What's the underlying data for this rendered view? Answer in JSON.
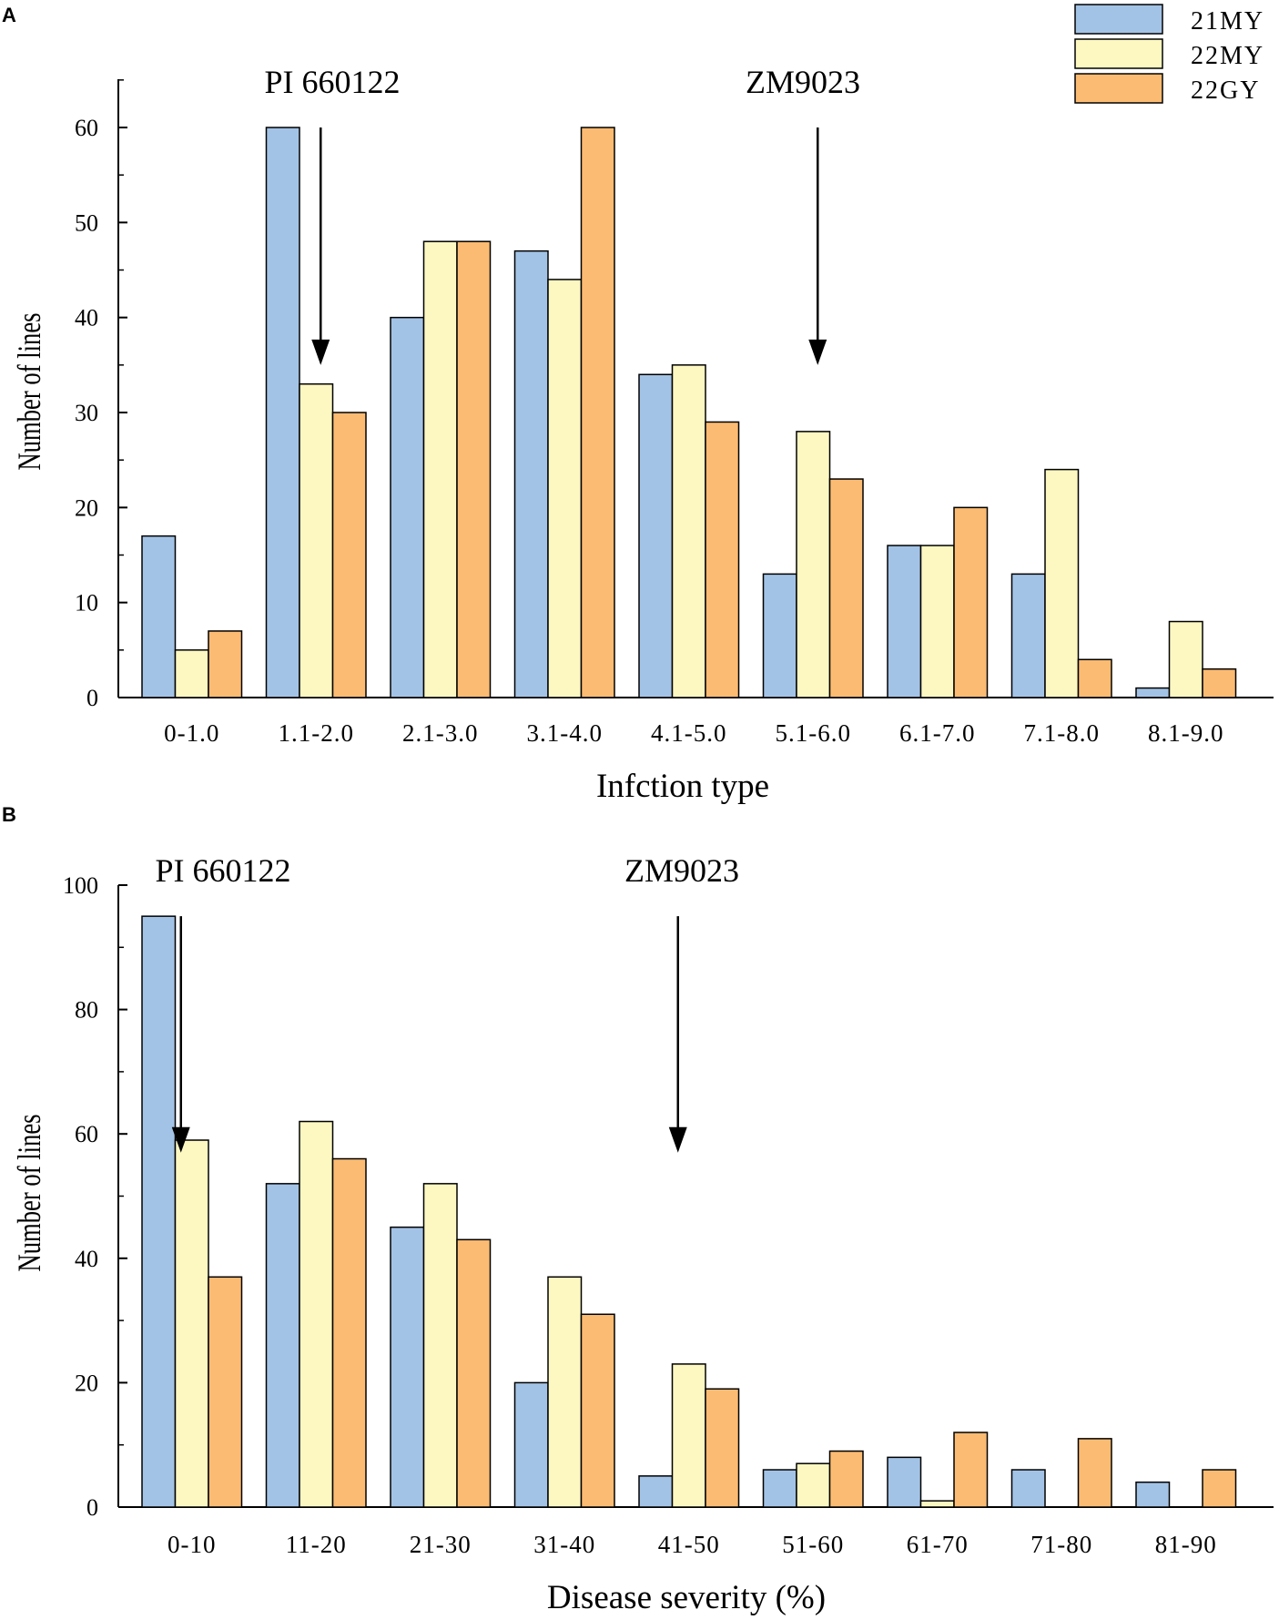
{
  "colors": {
    "21MY": "#a3c3e6",
    "22MY": "#fdf8c2",
    "22GY": "#fbbb72",
    "edge": "#000000"
  },
  "legend": {
    "items": [
      "21MY",
      "22MY",
      "22GY"
    ]
  },
  "chart_data": [
    {
      "panel": "A",
      "type": "bar",
      "title": "",
      "xlabel": "Infction type",
      "ylabel": "Number of lines",
      "ylim": [
        0,
        65
      ],
      "yticks": [
        0,
        10,
        20,
        30,
        40,
        50,
        60
      ],
      "categories": [
        "0-1.0",
        "1.1-2.0",
        "2.1-3.0",
        "3.1-4.0",
        "4.1-5.0",
        "5.1-6.0",
        "6.1-7.0",
        "7.1-8.0",
        "8.1-9.0"
      ],
      "series": [
        {
          "name": "21MY",
          "values": [
            17,
            60,
            40,
            47,
            34,
            13,
            16,
            13,
            1
          ]
        },
        {
          "name": "22MY",
          "values": [
            5,
            33,
            48,
            44,
            35,
            28,
            16,
            24,
            8
          ]
        },
        {
          "name": "22GY",
          "values": [
            7,
            30,
            48,
            60,
            29,
            23,
            20,
            4,
            3
          ]
        }
      ],
      "annotations": [
        {
          "text": "PI 660122",
          "category": "1.1-2.0",
          "arrow_from": 60,
          "arrow_to": 35
        },
        {
          "text": "ZM9023",
          "category": "5.1-6.0",
          "arrow_from": 60,
          "arrow_to": 35
        }
      ]
    },
    {
      "panel": "B",
      "type": "bar",
      "title": "",
      "xlabel": "Disease severity (%)",
      "ylabel": "Number of lines",
      "ylim": [
        0,
        100
      ],
      "yticks": [
        0,
        20,
        40,
        60,
        80,
        100
      ],
      "categories": [
        "0-10",
        "11-20",
        "21-30",
        "31-40",
        "41-50",
        "51-60",
        "61-70",
        "71-80",
        "81-90"
      ],
      "series": [
        {
          "name": "21MY",
          "values": [
            95,
            52,
            45,
            20,
            5,
            6,
            8,
            6,
            4
          ]
        },
        {
          "name": "22MY",
          "values": [
            59,
            62,
            52,
            37,
            23,
            7,
            1,
            0,
            0
          ]
        },
        {
          "name": "22GY",
          "values": [
            37,
            56,
            43,
            31,
            19,
            9,
            12,
            11,
            6
          ]
        }
      ],
      "annotations": [
        {
          "text": "PI 660122",
          "category": "0-10",
          "arrow_from": 95,
          "arrow_to": 57
        },
        {
          "text": "ZM9023",
          "category": "41-50",
          "arrow_from": 95,
          "arrow_to": 57
        }
      ]
    }
  ]
}
